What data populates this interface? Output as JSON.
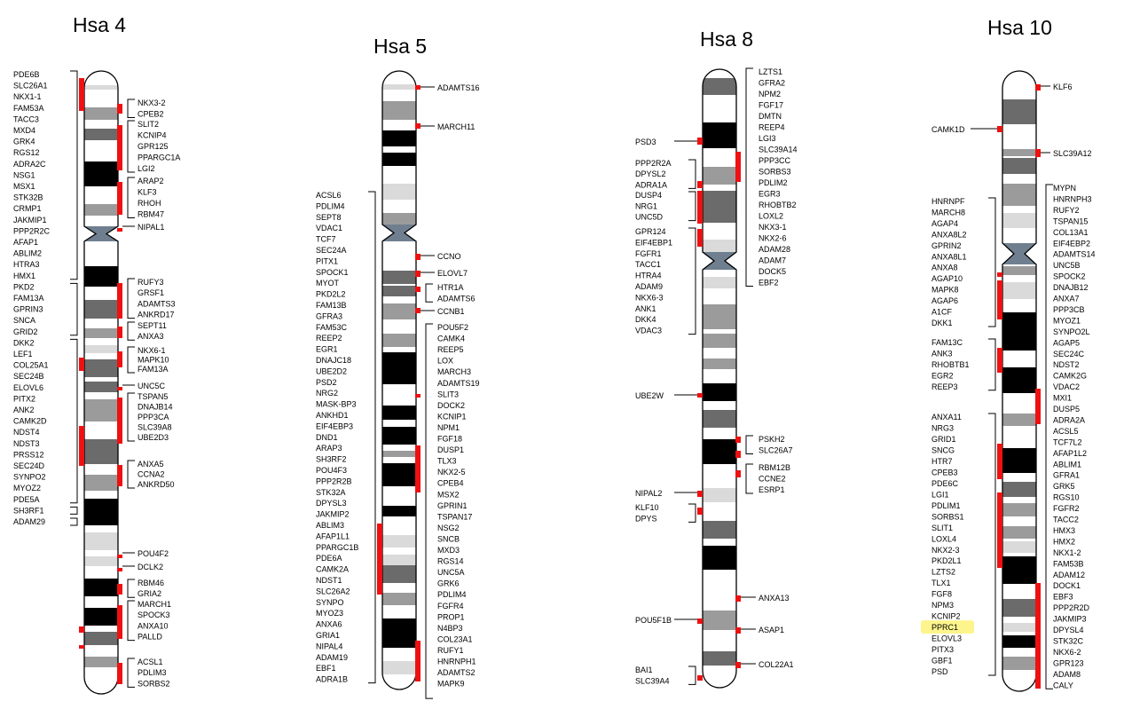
{
  "colors": {
    "marker": "#ee1111",
    "band_dark": "#000000",
    "band_gray": "#6b6b6b",
    "band_mid": "#9b9b9b",
    "band_light": "#dadada",
    "centromere": "#6f7f8f",
    "highlight": "#fdf58c"
  },
  "chromosomes": [
    {
      "title": "Hsa 4",
      "left_labels": [
        "PDE6B",
        "SLC26A1",
        "NKX1-1",
        "FAM53A",
        "TACC3",
        "MXD4",
        "GRK4",
        "RGS12",
        "ADRA2C",
        "NSG1",
        "MSX1",
        "STK32B",
        "CRMP1",
        "JAKMIP1",
        "PPP2R2C",
        "AFAP1",
        "ABLIM2",
        "HTRA3",
        "HMX1",
        "PKD2",
        "FAM13A",
        "GPRIN3",
        "SNCA",
        "GRID2",
        "DKK2",
        "LEF1",
        "COL25A1",
        "SEC24B",
        "ELOVL6",
        "PITX2",
        "ANK2",
        "CAMK2D",
        "NDST4",
        "NDST3",
        "PRSS12",
        "SEC24D",
        "SYNPO2",
        "MYOZ2",
        "PDE5A",
        "SH3RF1",
        "ADAM29"
      ],
      "right_labels": [
        "NKX3-2",
        "CPEB2",
        "SLIT2",
        "KCNIP4",
        "GPR125",
        "PPARGC1A",
        "LGI2",
        "ARAP2",
        "KLF3",
        "RHOH",
        "RBM47",
        "NIPAL1",
        "RUFY3",
        "GRSF1",
        "ADAMTS3",
        "ANKRD17",
        "SEPT11",
        "ANXA3",
        "NKX6-1",
        "MAPK10",
        "FAM13A",
        "UNC5C",
        "TSPAN5",
        "DNAJB14",
        "PPP3CA",
        "SLC39A8",
        "UBE2D3",
        "ANXA5",
        "CCNA2",
        "ANKRD50",
        "POU4F2",
        "DCLK2",
        "RBM46",
        "GRIA2",
        "MARCH1",
        "SPOCK3",
        "ANXA10",
        "PALLD",
        "ACSL1",
        "PDLIM3",
        "SORBS2"
      ]
    },
    {
      "title": "Hsa 5",
      "left_labels": [
        "ACSL6",
        "PDLIM4",
        "SEPT8",
        "VDAC1",
        "TCF7",
        "SEC24A",
        "PITX1",
        "SPOCK1",
        "MYOT",
        "PKD2L2",
        "FAM13B",
        "GFRA3",
        "FAM53C",
        "REEP2",
        "EGR1",
        "DNAJC18",
        "UBE2D2",
        "PSD2",
        "NRG2",
        "MASK-BP3",
        "ANKHD1",
        "EIF4EBP3",
        "DND1",
        "ARAP3",
        "SH3RF2",
        "POU4F3",
        "PPP2R2B",
        "STK32A",
        "DPYSL3",
        "JAKMIP2",
        "ABLIM3",
        "AFAP1L1",
        "PPARGC1B",
        "PDE6A",
        "CAMK2A",
        "NDST1",
        "SLC26A2",
        "SYNPO",
        "MYOZ3",
        "ANXA6",
        "GRIA1",
        "NIPAL4",
        "ADAM19",
        "EBF1",
        "ADRA1B"
      ],
      "right_labels": [
        "ADAMTS16",
        "MARCH11",
        "CCNO",
        "ELOVL7",
        "HTR1A",
        "ADAMTS6",
        "CCNB1",
        "POU5F2",
        "CAMK4",
        "REEP5",
        "LOX",
        "MARCH3",
        "ADAMTS19",
        "SLIT3",
        "DOCK2",
        "KCNIP1",
        "NPM1",
        "FGF18",
        "DUSP1",
        "TLX3",
        "NKX2-5",
        "CPEB4",
        "MSX2",
        "GPRIN1",
        "TSPAN17",
        "NSG2",
        "SNCB",
        "MXD3",
        "RGS14",
        "UNC5A",
        "GRK6",
        "PDLIM4",
        "FGFR4",
        "PROP1",
        "N4BP3",
        "COL23A1",
        "RUFY1",
        "HNRNPH1",
        "ADAMTS2",
        "MAPK9"
      ]
    },
    {
      "title": "Hsa 8",
      "left_labels": [
        "PSD3",
        "PPP2R2A",
        "DPYSL2",
        "ADRA1A",
        "DUSP4",
        "NRG1",
        "UNC5D",
        "GPR124",
        "EIF4EBP1",
        "FGFR1",
        "TACC1",
        "HTRA4",
        "ADAM9",
        "NKX6-3",
        "ANK1",
        "DKK4",
        "VDAC3",
        "UBE2W",
        "NIPAL2",
        "KLF10",
        "DPYS",
        "POU5F1B",
        "BAI1",
        "SLC39A4"
      ],
      "right_labels": [
        "LZTS1",
        "GFRA2",
        "NPM2",
        "FGF17",
        "DMTN",
        "REEP4",
        "LGI3",
        "SLC39A14",
        "PPP3CC",
        "SORBS3",
        "PDLIM2",
        "EGR3",
        "RHOBTB2",
        "LOXL2",
        "NKX3-1",
        "NKX2-6",
        "ADAM28",
        "ADAM7",
        "DOCK5",
        "EBF2",
        "PSKH2",
        "SLC26A7",
        "RBM12B",
        "CCNE2",
        "ESRP1",
        "ANXA13",
        "ASAP1",
        "COL22A1"
      ]
    },
    {
      "title": "Hsa 10",
      "left_labels": [
        "CAMK1D",
        "HNRNPF",
        "MARCH8",
        "AGAP4",
        "ANXA8L2",
        "GPRIN2",
        "ANXA8L1",
        "ANXA8",
        "AGAP10",
        "MAPK8",
        "AGAP6",
        "A1CF",
        "DKK1",
        "FAM13C",
        "ANK3",
        "RHOBTB1",
        "EGR2",
        "REEP3",
        "ANXA11",
        "NRG3",
        "GRID1",
        "SNCG",
        "HTR7",
        "CPEB3",
        "PDE6C",
        "LGI1",
        "PDLIM1",
        "SORBS1",
        "SLIT1",
        "LOXL4",
        "NKX2-3",
        "PKD2L1",
        "LZTS2",
        "TLX1",
        "FGF8",
        "NPM3",
        "KCNIP2",
        "PPRC1",
        "ELOVL3",
        "PITX3",
        "GBF1",
        "PSD"
      ],
      "right_labels": [
        "KLF6",
        "SLC39A12",
        "MYPN",
        "HNRNPH3",
        "RUFY2",
        "TSPAN15",
        "COL13A1",
        "EIF4EBP2",
        "ADAMTS14",
        "UNC5B",
        "SPOCK2",
        "DNAJB12",
        "ANXA7",
        "PPP3CB",
        "MYOZ1",
        "SYNPO2L",
        "AGAP5",
        "SEC24C",
        "NDST2",
        "CAMK2G",
        "VDAC2",
        "MXI1",
        "DUSP5",
        "ADRA2A",
        "ACSL5",
        "TCF7L2",
        "AFAP1L2",
        "ABLIM1",
        "GFRA1",
        "GRK5",
        "RGS10",
        "FGFR2",
        "TACC2",
        "HMX3",
        "HMX2",
        "NKX1-2",
        "FAM53B",
        "ADAM12",
        "DOCK1",
        "EBF3",
        "PPP2R2D",
        "JAKMIP3",
        "DPYSL4",
        "STK32C",
        "NKX6-2",
        "GPR123",
        "ADAM8",
        "CALY"
      ],
      "highlighted_label": "PPRC1"
    }
  ]
}
